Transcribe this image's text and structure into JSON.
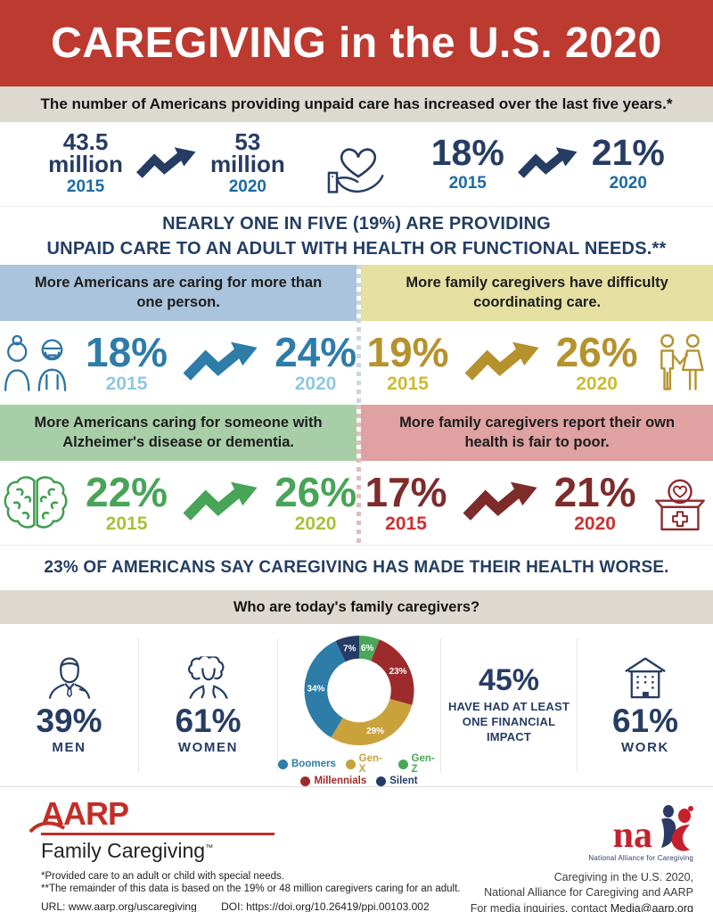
{
  "header": {
    "title": "CAREGIVING in the U.S. 2020",
    "bg": "#bd3a31"
  },
  "subtitle_bar": {
    "text": "The number of Americans providing unpaid care has increased over the last five years.*",
    "bg": "#ddd9d1"
  },
  "top_stats": {
    "millions": {
      "from": "43.5",
      "from_unit": "million",
      "from_year": "2015",
      "to": "53",
      "to_unit": "million",
      "to_year": "2020"
    },
    "percent": {
      "from": "18%",
      "from_year": "2015",
      "to": "21%",
      "to_year": "2020"
    }
  },
  "statement_one": {
    "line1": "NEARLY ONE IN FIVE (19%) ARE PROVIDING",
    "line2": "UNPAID CARE TO AN ADULT WITH HEALTH OR FUNCTIONAL NEEDS.**"
  },
  "quadrants": [
    {
      "title": "More Americans are caring for more than one person.",
      "from": "18%",
      "from_year": "2015",
      "to": "24%",
      "to_year": "2020",
      "icon": "elderly-couple-icon",
      "colors": {
        "header_bg": "#a9c4dc",
        "pct": "#2e7ca8",
        "year": "#8fc8e0",
        "icon": "#2b74a6"
      }
    },
    {
      "title": "More family caregivers have difficulty coordinating care.",
      "from": "19%",
      "from_year": "2015",
      "to": "26%",
      "to_year": "2020",
      "icon": "couple-holding-hands-icon",
      "colors": {
        "header_bg": "#e5e0a2",
        "pct": "#b5922e",
        "year": "#c9bc33",
        "icon": "#b5922e"
      }
    },
    {
      "title": "More Americans caring for someone with Alzheimer's disease or dementia.",
      "from": "22%",
      "from_year": "2015",
      "to": "26%",
      "to_year": "2020",
      "icon": "brain-icon",
      "colors": {
        "header_bg": "#a8cea8",
        "pct": "#48a457",
        "year": "#a6c23d",
        "icon": "#3e9e50"
      }
    },
    {
      "title": "More family caregivers report their own health is fair to poor.",
      "from": "17%",
      "from_year": "2015",
      "to": "21%",
      "to_year": "2020",
      "icon": "first-aid-donation-box-icon",
      "colors": {
        "header_bg": "#dfa1a1",
        "pct": "#7d2b2b",
        "year": "#cc3231",
        "icon": "#8c2a2a"
      }
    }
  ],
  "statement_two": "23% OF AMERICANS SAY CAREGIVING HAS MADE THEIR HEALTH WORSE.",
  "who_bar": {
    "text": "Who are today's family caregivers?",
    "bg": "#ddd9d1"
  },
  "bottom_stats": {
    "men": {
      "value": "39%",
      "label": "MEN"
    },
    "women": {
      "value": "61%",
      "label": "WOMEN"
    },
    "financial": {
      "value": "45%",
      "label": "HAVE HAD AT LEAST ONE FINANCIAL IMPACT"
    },
    "work": {
      "value": "61%",
      "label": "WORK"
    }
  },
  "chart_data": {
    "type": "pie",
    "donut": true,
    "title": "Who are today's family caregivers?",
    "categories": [
      "Gen-Z",
      "Millennials",
      "Gen-X",
      "Boomers",
      "Silent"
    ],
    "values": [
      6,
      23,
      29,
      34,
      7
    ],
    "slices": [
      {
        "label": "Gen-Z",
        "value": 6,
        "color": "#4ba757"
      },
      {
        "label": "Millennials",
        "value": 23,
        "color": "#9e2b2b"
      },
      {
        "label": "Gen-X",
        "value": 29,
        "color": "#c9a23b"
      },
      {
        "label": "Boomers",
        "value": 34,
        "color": "#2e7ca8"
      },
      {
        "label": "Silent",
        "value": 7,
        "color": "#253d66"
      }
    ],
    "start_angle_deg": 0,
    "direction": "clockwise",
    "legend_position": "bottom",
    "legend_rows": [
      [
        {
          "label": "Boomers",
          "color": "#2e7ca8"
        },
        {
          "label": "Gen-X",
          "color": "#c9a23b"
        },
        {
          "label": "Gen-Z",
          "color": "#4ba757"
        }
      ],
      [
        {
          "label": "Millennials",
          "color": "#9e2b2b"
        },
        {
          "label": "Silent",
          "color": "#253d66"
        }
      ]
    ]
  },
  "footer": {
    "aarp_logo": "AARP",
    "aarp_sub": "Family Caregiving",
    "aarp_tm": "™",
    "footnote1": "*Provided care to an adult or child with special needs.",
    "footnote2": "**The remainder of this data is based on the 19% or 48 million caregivers caring for an adult.",
    "url_label": "URL:",
    "url": "www.aarp.org/uscaregiving",
    "doi_label": "DOI:",
    "doi": "https://doi.org/10.26419/ppi.00103.002",
    "nac_logo": "na",
    "nac_sub": "National Alliance for Caregiving",
    "credit_line1": "Caregiving in the U.S. 2020,",
    "credit_line2": "National Alliance for Caregiving and AARP",
    "credit_line3": "For media inquiries, contact ",
    "media_email": "Media@aarp.org"
  },
  "colors": {
    "navy": "#263c63",
    "steel_blue": "#1c6ba3",
    "header_red": "#bd3a31",
    "bar_gray": "#ddd9d1",
    "aarp_red": "#c22e27"
  }
}
